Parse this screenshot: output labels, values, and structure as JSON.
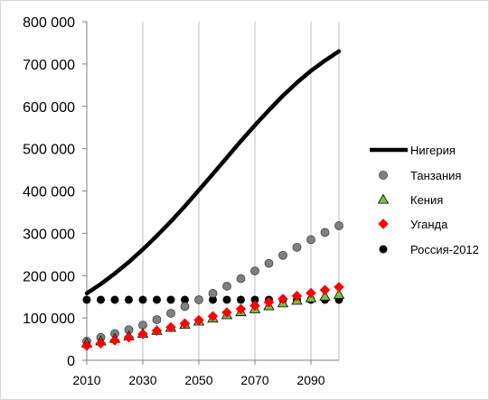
{
  "chart_data": {
    "type": "line",
    "title": "",
    "xlabel": "",
    "ylabel": "",
    "xlim": [
      2010,
      2100
    ],
    "ylim": [
      0,
      800000
    ],
    "x_ticks": [
      2010,
      2030,
      2050,
      2070,
      2090
    ],
    "x_tick_labels": [
      "2010",
      "2030",
      "2050",
      "2070",
      "2090"
    ],
    "y_ticks": [
      0,
      100000,
      200000,
      300000,
      400000,
      500000,
      600000,
      700000,
      800000
    ],
    "y_tick_labels": [
      "0",
      "100 000",
      "200 000",
      "300 000",
      "400 000",
      "500 000",
      "600 000",
      "700 000",
      "800 000"
    ],
    "grid": "vertical",
    "legend_position": "right",
    "series": [
      {
        "name": "Нигерия",
        "style": "line",
        "color": "#000000",
        "x": [
          2010,
          2015,
          2020,
          2025,
          2030,
          2035,
          2040,
          2045,
          2050,
          2055,
          2060,
          2065,
          2070,
          2075,
          2080,
          2085,
          2090,
          2095,
          2100
        ],
        "values": [
          158000,
          180000,
          205000,
          232000,
          262000,
          294000,
          328000,
          364000,
          402000,
          440000,
          479000,
          518000,
          555000,
          591000,
          625000,
          656000,
          684000,
          708000,
          730000
        ]
      },
      {
        "name": "Танзания",
        "style": "marker-circle",
        "color": "#808080",
        "x": [
          2010,
          2015,
          2020,
          2025,
          2030,
          2035,
          2040,
          2045,
          2050,
          2055,
          2060,
          2065,
          2070,
          2075,
          2080,
          2085,
          2090,
          2095,
          2100
        ],
        "values": [
          45000,
          54000,
          63000,
          72000,
          83000,
          96000,
          111000,
          127000,
          143000,
          158000,
          175000,
          193000,
          211000,
          229000,
          248000,
          267000,
          285000,
          302000,
          318000
        ]
      },
      {
        "name": "Кения",
        "style": "marker-triangle",
        "color": "#7fbf3f",
        "x": [
          2010,
          2015,
          2020,
          2025,
          2030,
          2035,
          2040,
          2045,
          2050,
          2055,
          2060,
          2065,
          2070,
          2075,
          2080,
          2085,
          2090,
          2095,
          2100
        ],
        "values": [
          40000,
          45000,
          51000,
          57000,
          63000,
          70000,
          77000,
          84000,
          92000,
          99000,
          107000,
          114000,
          121000,
          128000,
          135000,
          141000,
          147000,
          151000,
          155000
        ]
      },
      {
        "name": "Уганда",
        "style": "marker-diamond",
        "color": "#ff0000",
        "x": [
          2010,
          2015,
          2020,
          2025,
          2030,
          2035,
          2040,
          2045,
          2050,
          2055,
          2060,
          2065,
          2070,
          2075,
          2080,
          2085,
          2090,
          2095,
          2100
        ],
        "values": [
          34000,
          40000,
          47000,
          54000,
          62000,
          70000,
          78000,
          87000,
          95000,
          104000,
          113000,
          121000,
          129000,
          137000,
          145000,
          152000,
          159000,
          166000,
          173000
        ]
      },
      {
        "name": "Россия-2012",
        "style": "marker-dot",
        "color": "#000000",
        "x": [
          2010,
          2015,
          2020,
          2025,
          2030,
          2035,
          2040,
          2045,
          2050,
          2055,
          2060,
          2065,
          2070,
          2075,
          2080,
          2085,
          2090,
          2095,
          2100
        ],
        "values": [
          143000,
          143000,
          143000,
          143000,
          143000,
          143000,
          143000,
          143000,
          143000,
          143000,
          143000,
          143000,
          143000,
          143000,
          143000,
          143000,
          143000,
          143000,
          143000
        ]
      }
    ]
  }
}
